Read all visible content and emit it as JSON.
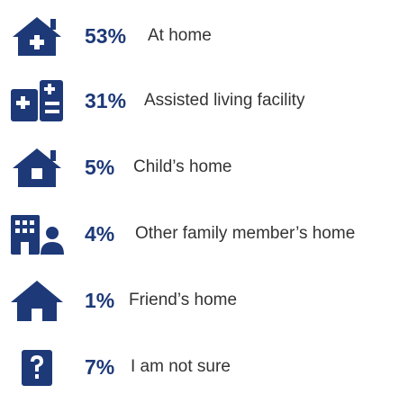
{
  "items": [
    {
      "percent": "53%",
      "label": "At home"
    },
    {
      "percent": "31%",
      "label": "Assisted living facility"
    },
    {
      "percent": "5%",
      "label": "Child’s home"
    },
    {
      "percent": "4%",
      "label": "Other family member’s home"
    },
    {
      "percent": "1%",
      "label": "Friend’s home"
    },
    {
      "percent": "7%",
      "label": "I am not sure"
    }
  ]
}
